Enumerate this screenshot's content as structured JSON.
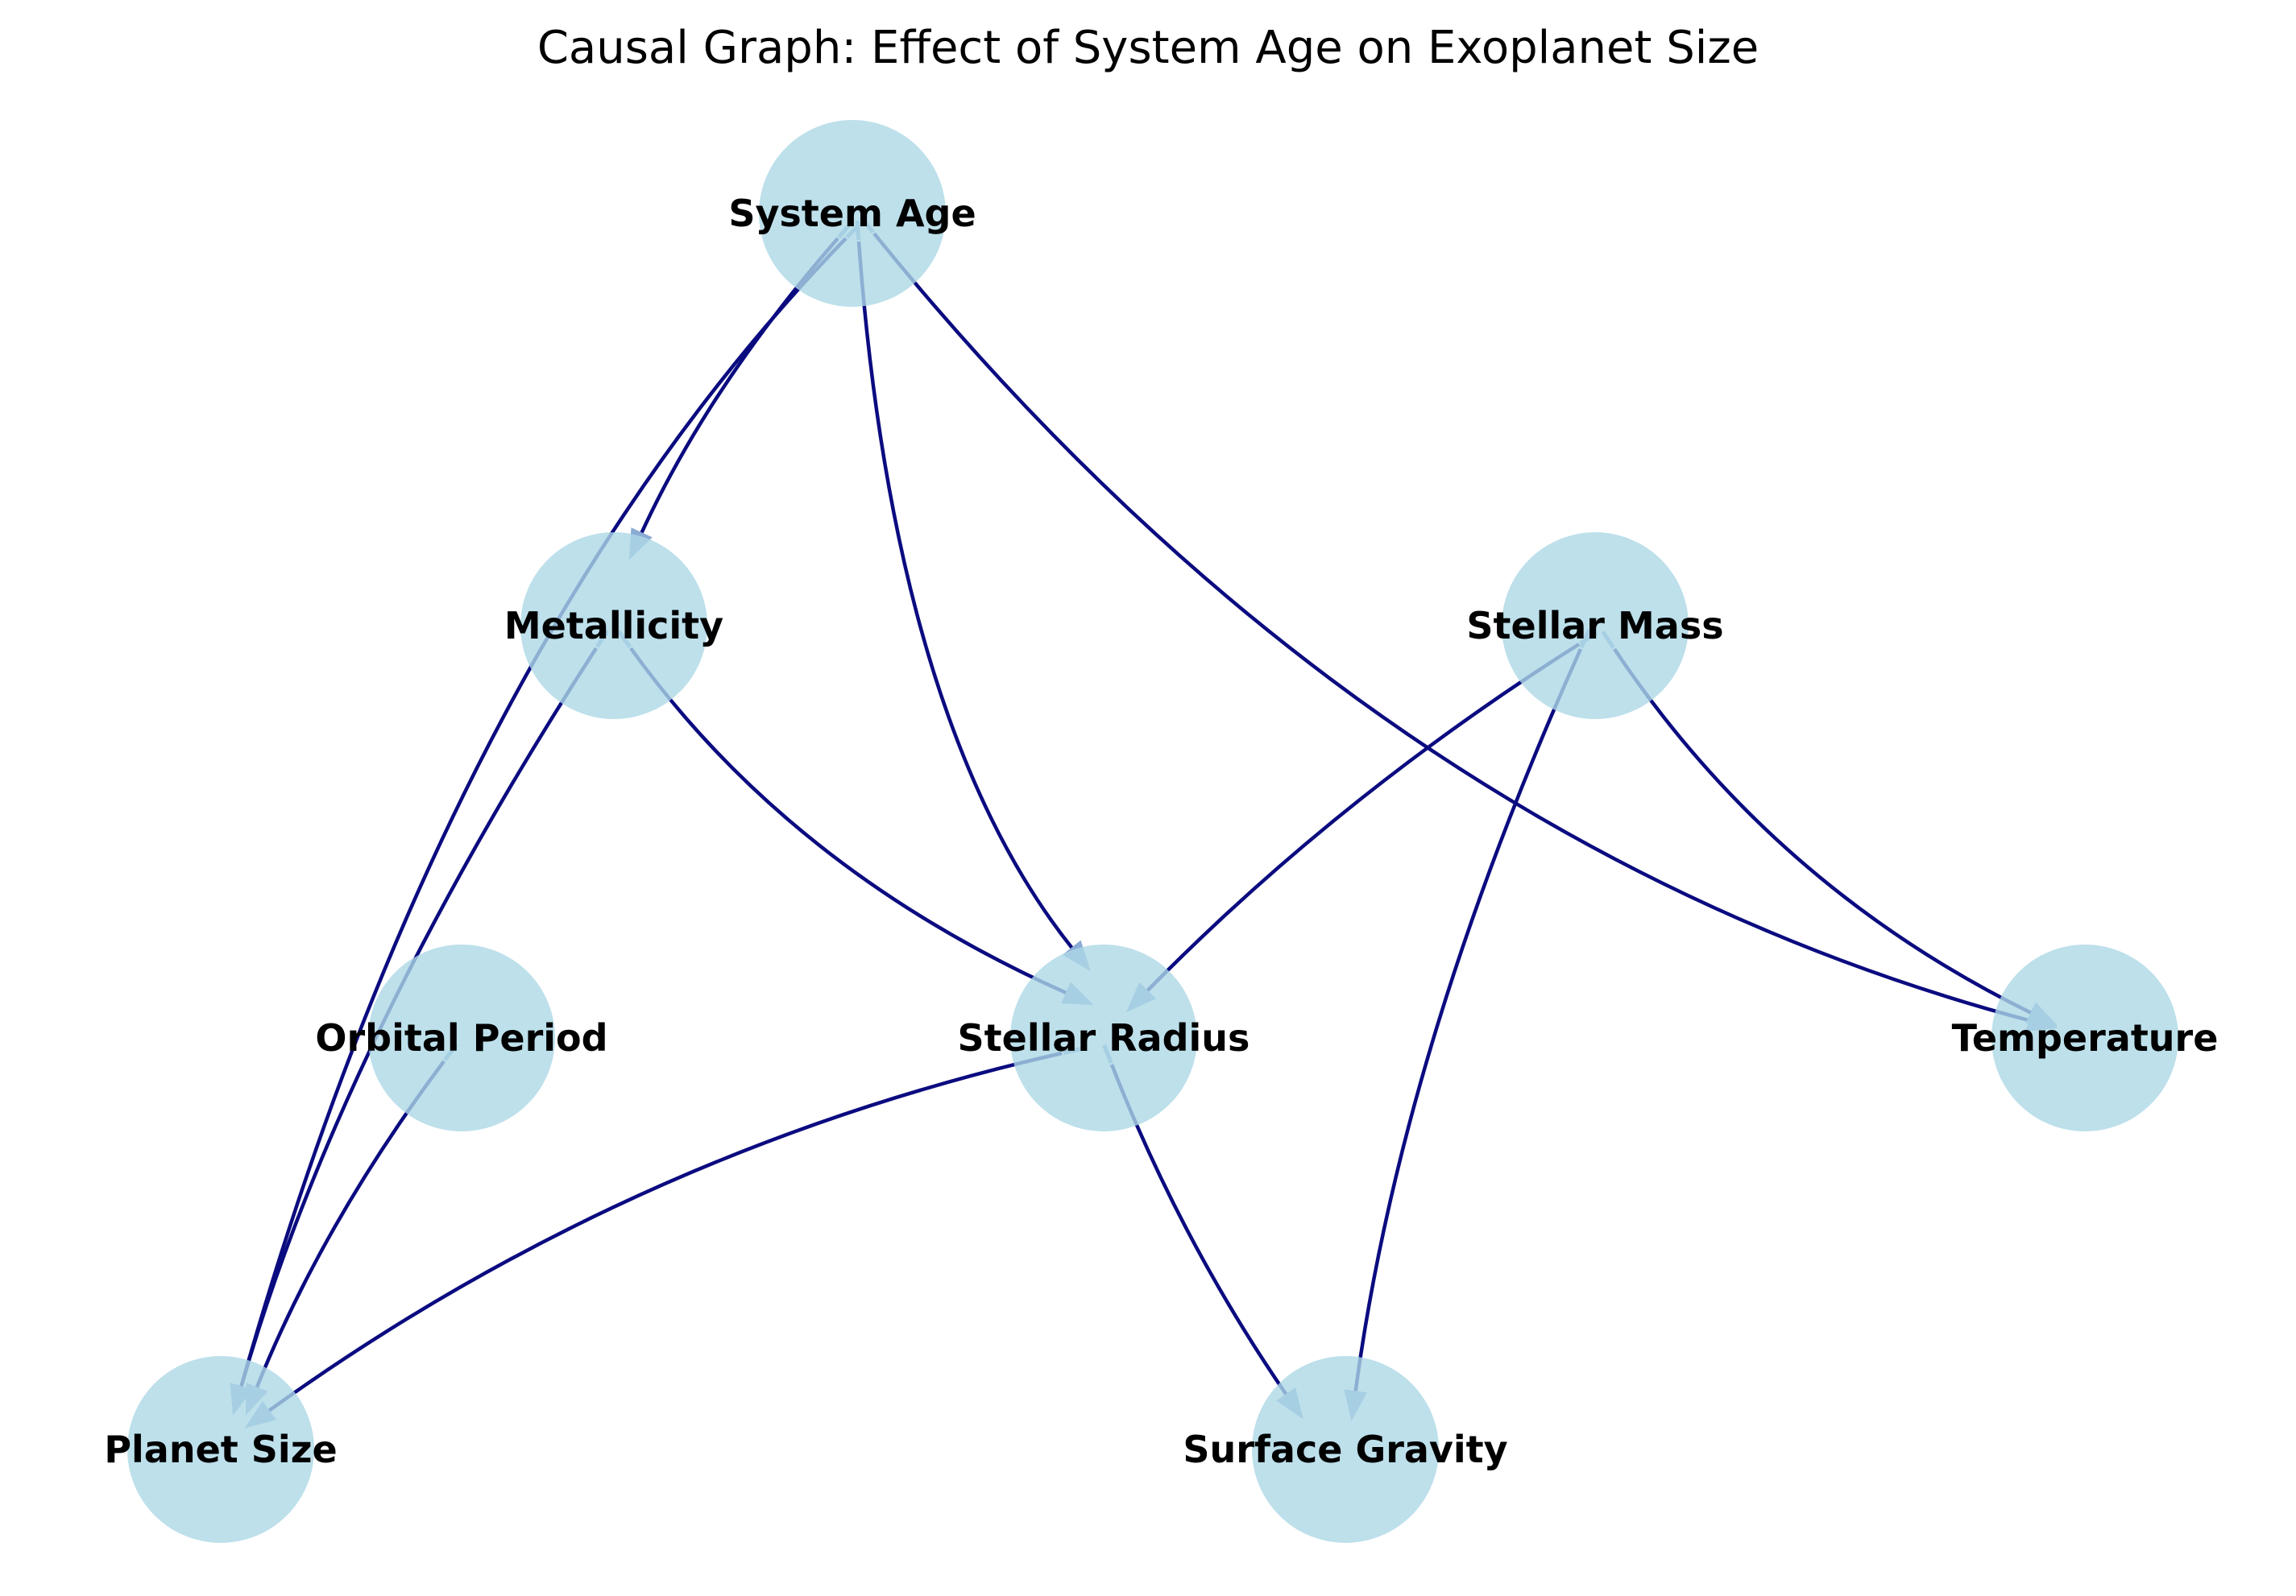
{
  "title": "Causal Graph: Effect of System Age on Exoplanet Size",
  "colors": {
    "node_fill": "#add8e6",
    "edge": "#000080",
    "arrowhead": "#8aabd4"
  },
  "nodes": [
    {
      "id": "system_age",
      "label": "System Age"
    },
    {
      "id": "metallicity",
      "label": "Metallicity"
    },
    {
      "id": "stellar_mass",
      "label": "Stellar Mass"
    },
    {
      "id": "orbital_period",
      "label": "Orbital Period"
    },
    {
      "id": "stellar_radius",
      "label": "Stellar Radius"
    },
    {
      "id": "temperature",
      "label": "Temperature"
    },
    {
      "id": "planet_size",
      "label": "Planet Size"
    },
    {
      "id": "surface_gravity",
      "label": "Surface Gravity"
    }
  ],
  "edges": [
    {
      "source": "system_age",
      "target": "metallicity"
    },
    {
      "source": "system_age",
      "target": "planet_size"
    },
    {
      "source": "system_age",
      "target": "stellar_radius"
    },
    {
      "source": "system_age",
      "target": "temperature"
    },
    {
      "source": "metallicity",
      "target": "planet_size"
    },
    {
      "source": "metallicity",
      "target": "stellar_radius"
    },
    {
      "source": "stellar_mass",
      "target": "stellar_radius"
    },
    {
      "source": "stellar_mass",
      "target": "surface_gravity"
    },
    {
      "source": "stellar_mass",
      "target": "temperature"
    },
    {
      "source": "orbital_period",
      "target": "planet_size"
    },
    {
      "source": "stellar_radius",
      "target": "planet_size"
    },
    {
      "source": "stellar_radius",
      "target": "surface_gravity"
    }
  ]
}
